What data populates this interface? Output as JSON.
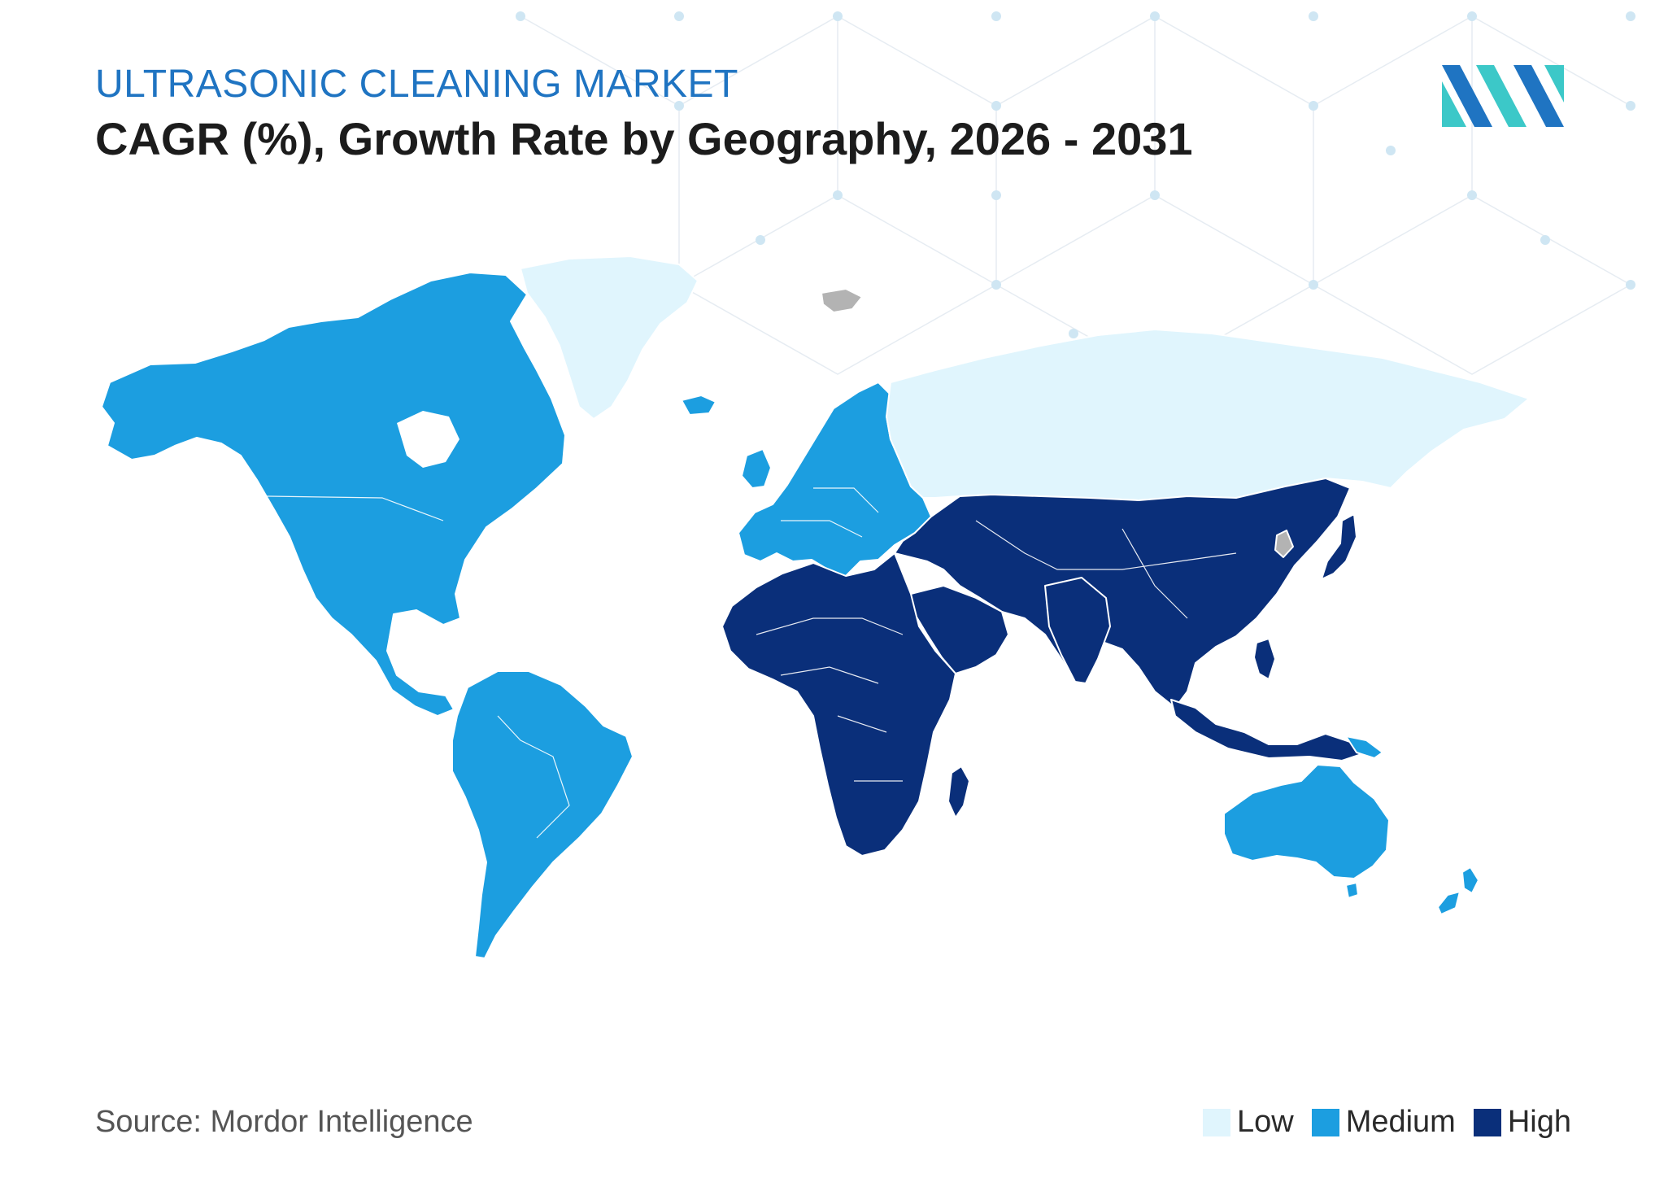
{
  "header": {
    "kicker": "ULTRASONIC CLEANING MARKET",
    "title": "CAGR (%), Growth Rate by Geography, 2026 - 2031"
  },
  "footer": {
    "source": "Source: Mordor Intelligence"
  },
  "legend": [
    {
      "label": "Low",
      "color": "#e0f5fd"
    },
    {
      "label": "Medium",
      "color": "#1c9ee0"
    },
    {
      "label": "High",
      "color": "#0a2f7a"
    }
  ],
  "regions": [
    {
      "region": "north-america",
      "level": "Medium"
    },
    {
      "region": "south-america",
      "level": "Medium"
    },
    {
      "region": "europe",
      "level": "Medium"
    },
    {
      "region": "australia-new-zealand",
      "level": "Medium"
    },
    {
      "region": "greenland",
      "level": "Low"
    },
    {
      "region": "russia",
      "level": "Low"
    },
    {
      "region": "africa",
      "level": "High"
    },
    {
      "region": "middle-east",
      "level": "High"
    },
    {
      "region": "asia",
      "level": "High"
    }
  ],
  "colors": {
    "no_data": "#b3b3b3",
    "border": "#ffffff",
    "kicker": "#1f74c2",
    "logo_dark": "#1f74c2",
    "logo_light": "#3cc8c8"
  }
}
